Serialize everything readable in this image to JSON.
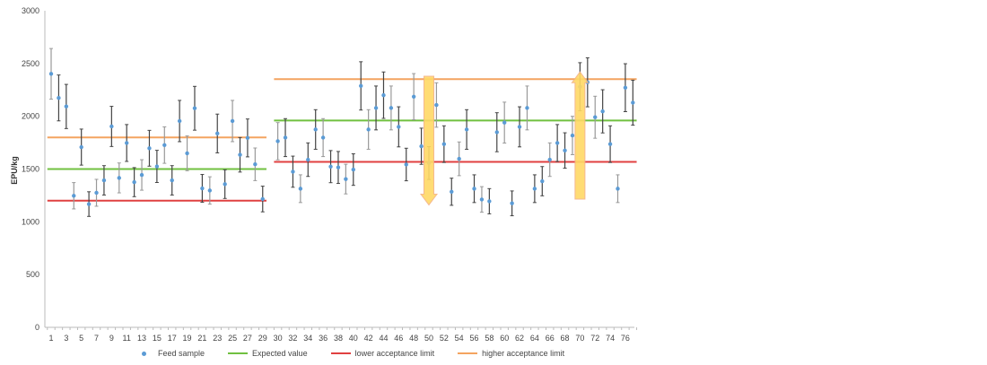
{
  "chart_data": {
    "type": "scatter",
    "title": "",
    "xlabel": "",
    "ylabel": "EPU/kg",
    "ylim": [
      0,
      3000
    ],
    "yticks": [
      0,
      500,
      1000,
      1500,
      2000,
      2500,
      3000
    ],
    "grid": false,
    "legend_placement": "bottom",
    "categories": [
      "1",
      "2",
      "3",
      "4",
      "5",
      "6",
      "7",
      "8",
      "9",
      "10",
      "11",
      "12",
      "13",
      "14",
      "15",
      "16",
      "17",
      "18",
      "19",
      "20",
      "21",
      "22",
      "23",
      "24",
      "25",
      "26",
      "27",
      "28",
      "29",
      "",
      "30",
      "31",
      "32",
      "33",
      "34",
      "35",
      "36",
      "37",
      "38",
      "39",
      "40",
      "41",
      "42",
      "43",
      "44",
      "45",
      "46",
      "47",
      "48",
      "49",
      "50",
      "51",
      "52",
      "53",
      "54",
      "55",
      "56",
      "57",
      "58",
      "59",
      "60",
      "61",
      "62",
      "63",
      "64",
      "65",
      "66",
      "67",
      "68",
      "69",
      "70",
      "71",
      "72",
      "73",
      "74",
      "75",
      "76",
      "77"
    ],
    "series": [
      {
        "name": "Feed sample",
        "color": "#5B9BD5",
        "error_bars_fraction": 0.1,
        "values": [
          2402,
          2174,
          2093,
          1247,
          1708,
          1168,
          1275,
          1393,
          1904,
          1416,
          1747,
          1376,
          1444,
          1697,
          1525,
          1727,
          1393,
          1955,
          1649,
          2076,
          1317,
          1297,
          1837,
          1357,
          1955,
          1635,
          1795,
          1545,
          1216,
          null,
          1764,
          1798,
          1475,
          1314,
          1589,
          1875,
          1798,
          1523,
          1515,
          1405,
          1495,
          2288,
          1875,
          2079,
          2200,
          2079,
          1900,
          1543,
          2186,
          1716,
          1557,
          2107,
          1736,
          1285,
          1597,
          1875,
          1314,
          1212,
          1195,
          1849,
          1940,
          1175,
          1900,
          2079,
          1314,
          1385,
          1589,
          1747,
          1676,
          1818,
          2280,
          2322,
          1991,
          2047,
          1736,
          1314,
          2271,
          2129
        ]
      },
      {
        "name": "Expected value",
        "color": "#70C040",
        "segments": [
          {
            "from": "1",
            "to": "29",
            "value": 1500
          },
          {
            "from": "30",
            "to": "77",
            "value": 1960
          }
        ]
      },
      {
        "name": "lower acceptance limit",
        "color": "#E04040",
        "segments": [
          {
            "from": "1",
            "to": "29",
            "value": 1200
          },
          {
            "from": "30",
            "to": "77",
            "value": 1568
          }
        ]
      },
      {
        "name": "higher acceptance limit",
        "color": "#F4A460",
        "segments": [
          {
            "from": "1",
            "to": "29",
            "value": 1800
          },
          {
            "from": "30",
            "to": "77",
            "value": 2352
          }
        ]
      }
    ],
    "annotations": [
      {
        "type": "arrow-down",
        "x": "50",
        "from": 2380,
        "to": 1160,
        "color": "#FFD966"
      },
      {
        "type": "arrow-up",
        "x": "70",
        "from": 1215,
        "to": 2420,
        "color": "#FFD966"
      }
    ]
  }
}
